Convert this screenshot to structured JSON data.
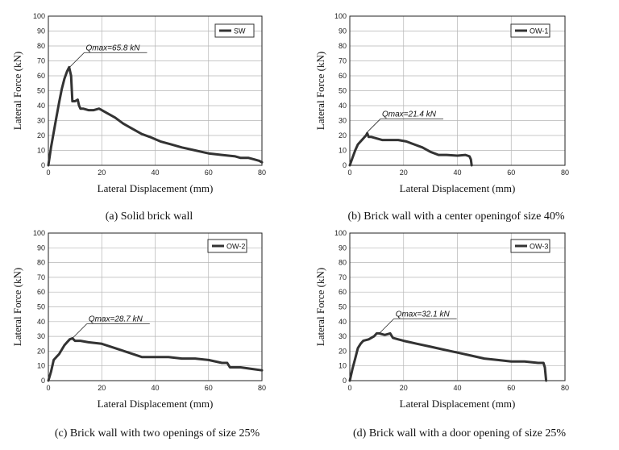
{
  "chart_data": [
    {
      "type": "line",
      "xlabel": "Lateral Displacement (mm)",
      "ylabel": "Lateral Force (kN)",
      "xlim": [
        0,
        80
      ],
      "ylim": [
        0,
        100
      ],
      "xticks": [
        "0",
        "20",
        "40",
        "60",
        "80"
      ],
      "yticks": [
        "0",
        "10",
        "20",
        "30",
        "40",
        "50",
        "60",
        "70",
        "80",
        "90",
        "100"
      ],
      "grid": true,
      "legend_placement": "top-right",
      "caption": "(a)   Solid brick wall",
      "annotation": {
        "text": "Qmax=65.8 kN",
        "x": 8,
        "y": 65.8
      },
      "series": [
        {
          "name": "SW",
          "x": [
            0,
            1,
            2,
            3,
            4,
            5,
            6,
            7,
            7.8,
            8.5,
            9,
            10,
            11,
            11.5,
            12,
            13,
            15,
            17,
            19,
            20,
            22,
            25,
            28,
            31,
            35,
            38,
            42,
            46,
            50,
            55,
            60,
            65,
            70,
            72,
            75,
            77,
            79,
            80
          ],
          "y": [
            0,
            12,
            22,
            32,
            42,
            51,
            58,
            63,
            65.8,
            60,
            43,
            43,
            44,
            40,
            38,
            38,
            37,
            37,
            38,
            37,
            35,
            32,
            28,
            25,
            21,
            19,
            16,
            14,
            12,
            10,
            8,
            7,
            6,
            5,
            5,
            4,
            3,
            2
          ]
        }
      ]
    },
    {
      "type": "line",
      "xlabel": "Lateral Displacement (mm)",
      "ylabel": "Lateral Force (kN)",
      "xlim": [
        0,
        80
      ],
      "ylim": [
        0,
        100
      ],
      "xticks": [
        "0",
        "20",
        "40",
        "60",
        "80"
      ],
      "yticks": [
        "0",
        "10",
        "20",
        "30",
        "40",
        "50",
        "60",
        "70",
        "80",
        "90",
        "100"
      ],
      "grid": true,
      "legend_placement": "top-right",
      "caption": "(b) Brick wall with a center openingof size 40%",
      "annotation": {
        "text": "Qmax=21.4 kN",
        "x": 6,
        "y": 21.4
      },
      "series": [
        {
          "name": "OW-1",
          "x": [
            0,
            1,
            2,
            3,
            4,
            5,
            6,
            6.5,
            7,
            8,
            10,
            12,
            15,
            18,
            21,
            24,
            27,
            30,
            33,
            36,
            40,
            43,
            44.5,
            45,
            45.3
          ],
          "y": [
            0,
            5,
            10,
            14,
            16,
            18,
            20,
            21.4,
            19,
            19,
            18,
            17,
            17,
            17,
            16,
            14,
            12,
            9,
            7,
            7,
            6.5,
            7,
            6,
            4,
            0
          ]
        }
      ]
    },
    {
      "type": "line",
      "xlabel": "Lateral Displacement (mm)",
      "ylabel": "Lateral Force (kN)",
      "xlim": [
        0,
        80
      ],
      "ylim": [
        0,
        100
      ],
      "xticks": [
        "0",
        "20",
        "40",
        "60",
        "80"
      ],
      "yticks": [
        "0",
        "10",
        "20",
        "30",
        "40",
        "50",
        "60",
        "70",
        "80",
        "90",
        "100"
      ],
      "grid": true,
      "legend_placement": "top-right",
      "caption": "(c) Brick wall with two openings of size 25%",
      "annotation": {
        "text": "Qmax=28.7 kN",
        "x": 9,
        "y": 28.7
      },
      "series": [
        {
          "name": "OW-2",
          "x": [
            0,
            1,
            2,
            3,
            4,
            5,
            6,
            7,
            8,
            9,
            10,
            12,
            15,
            20,
            25,
            30,
            35,
            40,
            45,
            50,
            55,
            60,
            65,
            67,
            68,
            72,
            76,
            80
          ],
          "y": [
            0,
            6,
            14,
            16,
            18,
            21,
            24,
            26,
            28,
            28.7,
            27,
            27,
            26,
            25,
            22,
            19,
            16,
            16,
            16,
            15,
            15,
            14,
            12,
            12,
            9,
            9,
            8,
            7
          ]
        }
      ]
    },
    {
      "type": "line",
      "xlabel": "Lateral Displacement (mm)",
      "ylabel": "Lateral Force (kN)",
      "xlim": [
        0,
        80
      ],
      "ylim": [
        0,
        100
      ],
      "xticks": [
        "0",
        "20",
        "40",
        "60",
        "80"
      ],
      "yticks": [
        "0",
        "10",
        "20",
        "30",
        "40",
        "50",
        "60",
        "70",
        "80",
        "90",
        "100"
      ],
      "grid": true,
      "legend_placement": "top-right",
      "caption": "(d) Brick wall with a door opening of size 25%",
      "annotation": {
        "text": "Qmax=32.1 kN",
        "x": 11,
        "y": 32.1
      },
      "series": [
        {
          "name": "OW-3",
          "x": [
            0,
            1,
            2,
            3,
            4,
            5,
            7,
            9,
            10,
            11,
            13,
            15,
            16,
            18,
            20,
            25,
            30,
            35,
            40,
            45,
            50,
            55,
            60,
            65,
            70,
            72,
            72.5,
            73
          ],
          "y": [
            0,
            8,
            15,
            22,
            25,
            27,
            28,
            30,
            32,
            32,
            31,
            32,
            29,
            28,
            27,
            25,
            23,
            21,
            19,
            17,
            15,
            14,
            13,
            13,
            12,
            12,
            9,
            0
          ]
        }
      ]
    }
  ]
}
